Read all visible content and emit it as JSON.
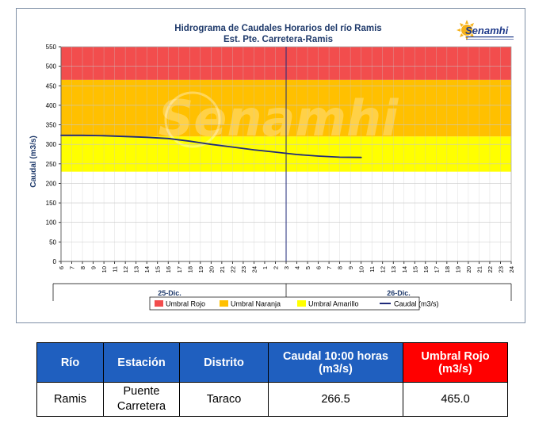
{
  "chart_data": {
    "type": "line",
    "title": "Hidrograma de Caudales Horarios del río Ramis",
    "subtitle": "Est. Pte. Carretera-Ramis",
    "ylabel": "Caudal  (m3/s)",
    "xlabel": "",
    "ylim": [
      0,
      550
    ],
    "yticks": [
      0,
      50,
      100,
      150,
      200,
      250,
      300,
      350,
      400,
      450,
      500,
      550
    ],
    "x_tick_labels": [
      "6",
      "7",
      "8",
      "9",
      "10",
      "11",
      "12",
      "13",
      "14",
      "15",
      "16",
      "17",
      "18",
      "19",
      "20",
      "21",
      "22",
      "23",
      "24",
      "1",
      "2",
      "3",
      "4",
      "5",
      "6",
      "7",
      "8",
      "9",
      "10",
      "11",
      "12",
      "13",
      "14",
      "15",
      "16",
      "17",
      "18",
      "19",
      "20",
      "21",
      "22",
      "23",
      "24"
    ],
    "day_labels": [
      "25-Dic.",
      "26-Dic."
    ],
    "bands": [
      {
        "name": "Umbral Rojo",
        "from": 465,
        "to": 550,
        "color": "#f24d4d"
      },
      {
        "name": "Umbral Naranja",
        "from": 320,
        "to": 465,
        "color": "#ffc000"
      },
      {
        "name": "Umbral Amarillo",
        "from": 230,
        "to": 320,
        "color": "#ffff00"
      }
    ],
    "series": [
      {
        "name": "Caudal (m3/s)",
        "color": "#1f2a7a",
        "x_index": [
          0,
          2,
          4,
          6,
          8,
          10,
          12,
          14,
          16,
          18,
          20,
          22,
          24,
          26,
          28
        ],
        "values": [
          323,
          323,
          322,
          320,
          318,
          315,
          308,
          300,
          293,
          286,
          280,
          274,
          270,
          267,
          266.5
        ]
      }
    ],
    "day_divider_index": 21,
    "legend": [
      "Umbral Rojo",
      "Umbral Naranja",
      "Umbral Amarillo",
      "Caudal (m3/s)"
    ],
    "legend_position": "bottom",
    "grid": true,
    "watermark": "Senamhi"
  },
  "logo": {
    "text": "Senamhi"
  },
  "table": {
    "headers": [
      "Río",
      "Estación",
      "Distrito",
      "Caudal  10:00 horas (m3/s)",
      "Umbral Rojo (m3/s)"
    ],
    "row": [
      "Ramis",
      "Puente Carretera",
      "Taraco",
      "266.5",
      "465.0"
    ]
  }
}
